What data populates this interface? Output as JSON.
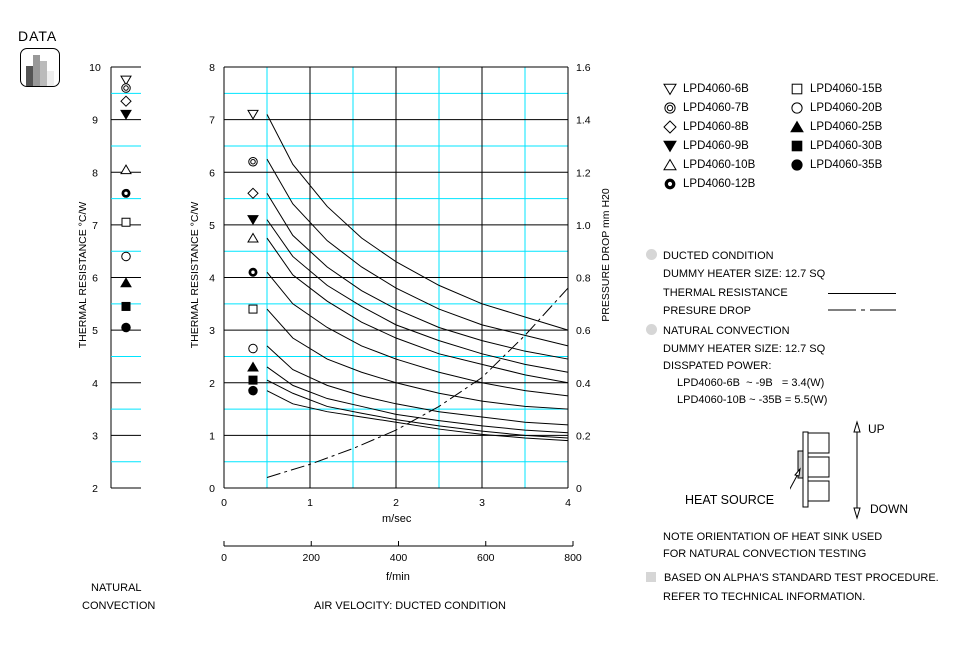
{
  "header": {
    "data_label": "DATA",
    "icon": "bar-chart-icon"
  },
  "colors": {
    "major_grid": "#000000",
    "minor_grid": "#00e5ff",
    "curve": "#000000",
    "bullet": "#d6d6d6"
  },
  "natural_panel": {
    "ylabel": "THERMAL  RESISTANCE   °C/W",
    "yticks": [
      "10",
      "9",
      "8",
      "7",
      "6",
      "5",
      "4",
      "3",
      "2"
    ],
    "caption_line1": "NATURAL",
    "caption_line2": "CONVECTION"
  },
  "main_panel": {
    "ylabel": "THERMAL  RESISTANCE   °C/W",
    "y2label": "PRESSURE  DROP    mm H20",
    "yticks": [
      "8",
      "7",
      "6",
      "5",
      "4",
      "3",
      "2",
      "1",
      "0"
    ],
    "y2ticks": [
      "1.6",
      "1.4",
      "1.2",
      "1.0",
      "0.8",
      "0.6",
      "0.4",
      "0.2",
      "0"
    ],
    "xticks": [
      "0",
      "1",
      "2",
      "3",
      "4"
    ],
    "xlabel": "m/sec",
    "x2ticks": [
      "0",
      "200",
      "400",
      "600",
      "800"
    ],
    "x2label": "f/min",
    "caption": "AIR VELOCITY:  DUCTED CONDITION"
  },
  "legend": [
    {
      "label": "LPD4060-6B",
      "marker": "triangle-down-open"
    },
    {
      "label": "LPD4060-7B",
      "marker": "double-circle"
    },
    {
      "label": "LPD4060-8B",
      "marker": "diamond-open"
    },
    {
      "label": "LPD4060-9B",
      "marker": "triangle-down-filled"
    },
    {
      "label": "LPD4060-10B",
      "marker": "triangle-up-open"
    },
    {
      "label": "LPD4060-12B",
      "marker": "thick-ring"
    },
    {
      "label": "LPD4060-15B",
      "marker": "square-open"
    },
    {
      "label": "LPD4060-20B",
      "marker": "circle-open"
    },
    {
      "label": "LPD4060-25B",
      "marker": "triangle-up-filled"
    },
    {
      "label": "LPD4060-30B",
      "marker": "square-filled"
    },
    {
      "label": "LPD4060-35B",
      "marker": "circle-filled"
    }
  ],
  "notes": {
    "ducted_title": "DUCTED CONDITION",
    "ducted_heater": "DUMMY HEATER SIZE: 12.7 SQ",
    "thermal_resistance": "THERMAL RESISTANCE",
    "pressure_drop": "PRESURE DROP",
    "natural_title": "NATURAL CONVECTION",
    "natural_heater": "DUMMY HEATER SIZE: 12.7 SQ",
    "dissipated": "DISSPATED POWER:",
    "power_line1": "LPD4060-6B  ~ -9B   = 3.4(W)",
    "power_line2": "LPD4060-10B ~ -35B = 5.5(W)",
    "up": "UP",
    "down": "DOWN",
    "heat_source": "HEAT SOURCE",
    "orientation1": "NOTE ORIENTATION OF HEAT SINK USED",
    "orientation2": "FOR NATURAL CONVECTION TESTING",
    "procedure1": "BASED ON ALPHA'S STANDARD TEST PROCEDURE.",
    "procedure2": "REFER TO TECHNICAL INFORMATION."
  },
  "chart_data": [
    {
      "type": "scatter",
      "title": "Natural Convection",
      "ylabel": "THERMAL RESISTANCE °C/W",
      "ylim": [
        2,
        10
      ],
      "grid": true,
      "points": [
        {
          "name": "LPD4060-6B",
          "y": 9.75
        },
        {
          "name": "LPD4060-7B",
          "y": 9.6
        },
        {
          "name": "LPD4060-8B",
          "y": 9.35
        },
        {
          "name": "LPD4060-9B",
          "y": 9.1
        },
        {
          "name": "LPD4060-10B",
          "y": 8.05
        },
        {
          "name": "LPD4060-12B",
          "y": 7.6
        },
        {
          "name": "LPD4060-15B",
          "y": 7.05
        },
        {
          "name": "LPD4060-20B",
          "y": 6.4
        },
        {
          "name": "LPD4060-25B",
          "y": 5.9
        },
        {
          "name": "LPD4060-30B",
          "y": 5.45
        },
        {
          "name": "LPD4060-35B",
          "y": 5.05
        }
      ]
    },
    {
      "type": "line",
      "title": "Ducted Condition",
      "xlabel": "m/sec",
      "x2label": "f/min",
      "ylabel": "THERMAL RESISTANCE °C/W",
      "y2label": "PRESSURE DROP mm H20",
      "xlim": [
        0,
        4
      ],
      "ylim": [
        0,
        8
      ],
      "y2lim": [
        0,
        1.6
      ],
      "grid": true,
      "legend_position": "right",
      "x": [
        0.5,
        0.8,
        1.2,
        1.6,
        2.0,
        2.5,
        3.0,
        3.5,
        4.0
      ],
      "series": [
        {
          "name": "LPD4060-6B",
          "marker_y": 7.1,
          "values": [
            7.1,
            6.15,
            5.35,
            4.75,
            4.3,
            3.85,
            3.5,
            3.25,
            3.0
          ]
        },
        {
          "name": "LPD4060-7B",
          "marker_y": 6.2,
          "values": [
            6.25,
            5.4,
            4.7,
            4.2,
            3.8,
            3.4,
            3.1,
            2.9,
            2.7
          ]
        },
        {
          "name": "LPD4060-8B",
          "marker_y": 5.6,
          "values": [
            5.6,
            4.8,
            4.2,
            3.75,
            3.4,
            3.05,
            2.8,
            2.6,
            2.45
          ]
        },
        {
          "name": "LPD4060-9B",
          "marker_y": 5.1,
          "values": [
            5.1,
            4.4,
            3.85,
            3.45,
            3.1,
            2.8,
            2.55,
            2.35,
            2.2
          ]
        },
        {
          "name": "LPD4060-10B",
          "marker_y": 4.75,
          "values": [
            4.75,
            4.05,
            3.55,
            3.15,
            2.85,
            2.55,
            2.35,
            2.15,
            2.0
          ]
        },
        {
          "name": "LPD4060-12B",
          "marker_y": 4.1,
          "values": [
            4.1,
            3.5,
            3.05,
            2.7,
            2.45,
            2.2,
            2.0,
            1.85,
            1.75
          ]
        },
        {
          "name": "LPD4060-15B",
          "marker_y": 3.4,
          "values": [
            3.4,
            2.85,
            2.45,
            2.2,
            2.0,
            1.8,
            1.65,
            1.55,
            1.5
          ]
        },
        {
          "name": "LPD4060-20B",
          "marker_y": 2.65,
          "values": [
            2.7,
            2.25,
            1.95,
            1.75,
            1.6,
            1.45,
            1.35,
            1.25,
            1.2
          ]
        },
        {
          "name": "LPD4060-25B",
          "marker_y": 2.3,
          "values": [
            2.3,
            1.95,
            1.7,
            1.55,
            1.4,
            1.28,
            1.18,
            1.1,
            1.05
          ]
        },
        {
          "name": "LPD4060-30B",
          "marker_y": 2.05,
          "values": [
            2.05,
            1.8,
            1.55,
            1.42,
            1.3,
            1.18,
            1.08,
            1.0,
            0.95
          ]
        },
        {
          "name": "LPD4060-35B",
          "marker_y": 1.85,
          "values": [
            1.85,
            1.6,
            1.45,
            1.35,
            1.25,
            1.12,
            1.02,
            0.95,
            0.9
          ]
        }
      ],
      "pressure_drop": {
        "name": "Pressure Drop (mm H20)",
        "style": "dash-dot",
        "x": [
          0.5,
          1.0,
          1.5,
          2.0,
          2.5,
          3.0,
          3.5,
          4.0
        ],
        "values": [
          0.04,
          0.09,
          0.15,
          0.22,
          0.31,
          0.42,
          0.58,
          0.76
        ]
      }
    }
  ]
}
